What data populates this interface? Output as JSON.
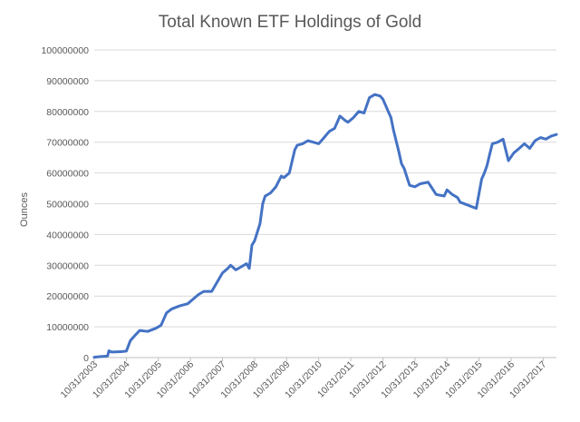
{
  "chart_data": {
    "type": "line",
    "title": "Total Known ETF Holdings of Gold",
    "xlabel": "",
    "ylabel": "Ounces",
    "ylim": [
      0,
      100000000
    ],
    "y_ticks": [
      "0",
      "10000000",
      "20000000",
      "30000000",
      "40000000",
      "50000000",
      "60000000",
      "70000000",
      "80000000",
      "90000000",
      "100000000"
    ],
    "x_tick_labels": [
      "10/31/2003",
      "10/31/2004",
      "10/31/2005",
      "10/31/2006",
      "10/31/2007",
      "10/31/2008",
      "10/31/2009",
      "10/31/2010",
      "10/31/2011",
      "10/31/2012",
      "10/31/2013",
      "10/31/2014",
      "10/31/2015",
      "10/31/2016",
      "10/31/2017"
    ],
    "x_range": [
      "2003-10-31",
      "2018-03-31"
    ],
    "grid": true,
    "legend": "none",
    "series_color": "#4472C4",
    "series": [
      {
        "x": [
          "2003-10-31",
          "2003-12-31",
          "2004-03-31",
          "2004-04-15",
          "2004-05-15",
          "2004-08-31",
          "2004-10-31",
          "2004-12-15",
          "2005-01-31",
          "2005-03-31",
          "2005-06-30",
          "2005-09-30",
          "2005-11-30",
          "2006-01-31",
          "2006-03-31",
          "2006-06-30",
          "2006-09-30",
          "2006-11-30",
          "2007-01-31",
          "2007-03-31",
          "2007-06-30",
          "2007-09-30",
          "2007-10-31",
          "2007-12-31",
          "2008-01-31",
          "2008-03-31",
          "2008-05-31",
          "2008-07-31",
          "2008-08-31",
          "2008-09-30",
          "2008-10-31",
          "2008-12-31",
          "2009-01-31",
          "2009-02-28",
          "2009-04-30",
          "2009-06-30",
          "2009-08-31",
          "2009-09-30",
          "2009-11-30",
          "2010-01-31",
          "2010-02-28",
          "2010-04-30",
          "2010-06-30",
          "2010-08-31",
          "2010-10-31",
          "2010-12-31",
          "2011-02-28",
          "2011-04-30",
          "2011-06-30",
          "2011-08-31",
          "2011-09-30",
          "2011-11-30",
          "2012-01-31",
          "2012-03-31",
          "2012-05-31",
          "2012-07-31",
          "2012-09-30",
          "2012-10-31",
          "2012-12-31",
          "2013-01-31",
          "2013-02-28",
          "2013-04-30",
          "2013-05-31",
          "2013-06-30",
          "2013-08-31",
          "2013-10-31",
          "2013-12-31",
          "2014-03-31",
          "2014-06-30",
          "2014-09-30",
          "2014-10-31",
          "2014-12-31",
          "2015-02-28",
          "2015-03-31",
          "2015-06-30",
          "2015-09-30",
          "2015-11-30",
          "2015-12-31",
          "2016-01-31",
          "2016-02-29",
          "2016-03-31",
          "2016-05-31",
          "2016-07-31",
          "2016-09-30",
          "2016-11-30",
          "2017-01-31",
          "2017-03-31",
          "2017-05-31",
          "2017-07-31",
          "2017-09-30",
          "2017-11-30",
          "2018-01-31",
          "2018-03-31"
        ],
        "values": [
          100000,
          300000,
          500000,
          2200000,
          1800000,
          1900000,
          2100000,
          5500000,
          7000000,
          8800000,
          8500000,
          9500000,
          10500000,
          14500000,
          15800000,
          16800000,
          17500000,
          19000000,
          20500000,
          21500000,
          21500000,
          26000000,
          27500000,
          29000000,
          30000000,
          28500000,
          29500000,
          30500000,
          29000000,
          36500000,
          38000000,
          43500000,
          50000000,
          52500000,
          53500000,
          55500000,
          59000000,
          58500000,
          60000000,
          67500000,
          69000000,
          69500000,
          70500000,
          70000000,
          69500000,
          71500000,
          73500000,
          74500000,
          78500000,
          77000000,
          76500000,
          78000000,
          80000000,
          79500000,
          84500000,
          85500000,
          85000000,
          84000000,
          80000000,
          78000000,
          74000000,
          67000000,
          63000000,
          61500000,
          56000000,
          55500000,
          56500000,
          57000000,
          53000000,
          52500000,
          54500000,
          53000000,
          52000000,
          50500000,
          49500000,
          48500000,
          58000000,
          60000000,
          62500000,
          66000000,
          69500000,
          70000000,
          71000000,
          64000000,
          66500000,
          68000000,
          69500000,
          68000000,
          70500000,
          71500000,
          71000000,
          72000000,
          72500000
        ]
      }
    ]
  }
}
